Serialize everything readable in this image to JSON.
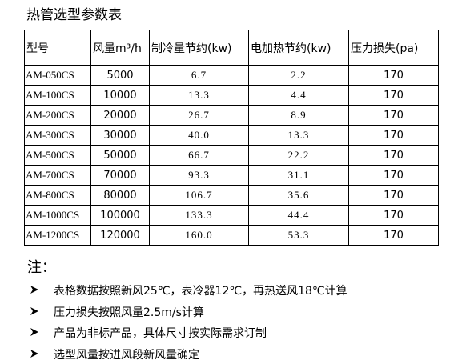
{
  "header": {
    "title": "热管选型参数表"
  },
  "table": {
    "columns": [
      "型号",
      "风量m³/h",
      "制冷量节约(kw)",
      "电加热节约(kw)",
      "压力损失(pa)"
    ],
    "rows": [
      [
        "AM-050CS",
        "5000",
        "6.7",
        "2.2",
        "170"
      ],
      [
        "AM-100CS",
        "10000",
        "13.3",
        "4.4",
        "170"
      ],
      [
        "AM-200CS",
        "20000",
        "26.7",
        "8.9",
        "170"
      ],
      [
        "AM-300CS",
        "30000",
        "40.0",
        "13.3",
        "170"
      ],
      [
        "AM-500CS",
        "50000",
        "66.7",
        "22.2",
        "170"
      ],
      [
        "AM-700CS",
        "70000",
        "93.3",
        "31.1",
        "170"
      ],
      [
        "AM-800CS",
        "80000",
        "106.7",
        "35.6",
        "170"
      ],
      [
        "AM-1000CS",
        "100000",
        "133.3",
        "44.4",
        "170"
      ],
      [
        "AM-1200CS",
        "120000",
        "160.0",
        "53.3",
        "170"
      ]
    ]
  },
  "notes": {
    "title": "注：",
    "items": [
      "表格数据按照新风25℃，表冷器12℃，再热送风18℃计算",
      "压力损失按照风量2.5m/s计算",
      "产品为非标产品，具体尺寸按实际需求订制",
      "选型风量按进风段新风量确定"
    ]
  }
}
